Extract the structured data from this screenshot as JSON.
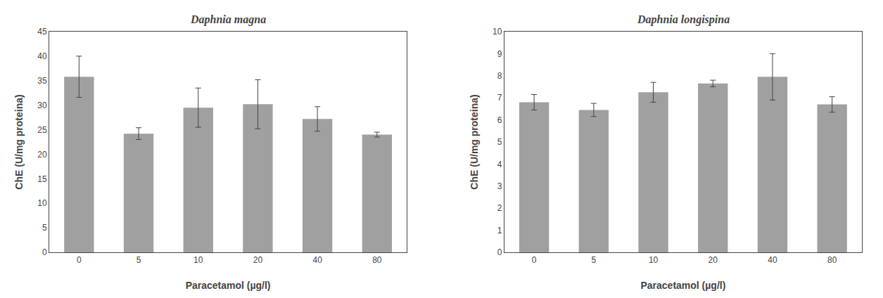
{
  "chart_data": [
    {
      "type": "bar",
      "title": "Daphnia magna",
      "categories": [
        "0",
        "5",
        "10",
        "20",
        "40",
        "80"
      ],
      "values": [
        35.8,
        24.2,
        29.5,
        30.2,
        27.2,
        24.0
      ],
      "errors": [
        4.2,
        1.2,
        4.0,
        5.0,
        2.5,
        0.5
      ],
      "ylabel": "ChE (U/mg proteina)",
      "xlabel": "Paracetamol (µg/l)",
      "ylim": [
        0,
        45
      ],
      "yticks": [
        0,
        5,
        10,
        15,
        20,
        25,
        30,
        35,
        40,
        45
      ],
      "color": "#a0a0a0",
      "grid": false
    },
    {
      "type": "bar",
      "title": "Daphnia longispina",
      "categories": [
        "0",
        "5",
        "10",
        "20",
        "40",
        "80"
      ],
      "values": [
        6.8,
        6.45,
        7.25,
        7.65,
        7.95,
        6.7
      ],
      "errors": [
        0.35,
        0.3,
        0.45,
        0.15,
        1.05,
        0.35
      ],
      "ylabel": "ChE (U/mg proteina)",
      "xlabel": "Paracetamol (µg/l)",
      "ylim": [
        0,
        10
      ],
      "yticks": [
        0,
        1,
        2,
        3,
        4,
        5,
        6,
        7,
        8,
        9,
        10
      ],
      "color": "#a0a0a0",
      "grid": false
    }
  ]
}
